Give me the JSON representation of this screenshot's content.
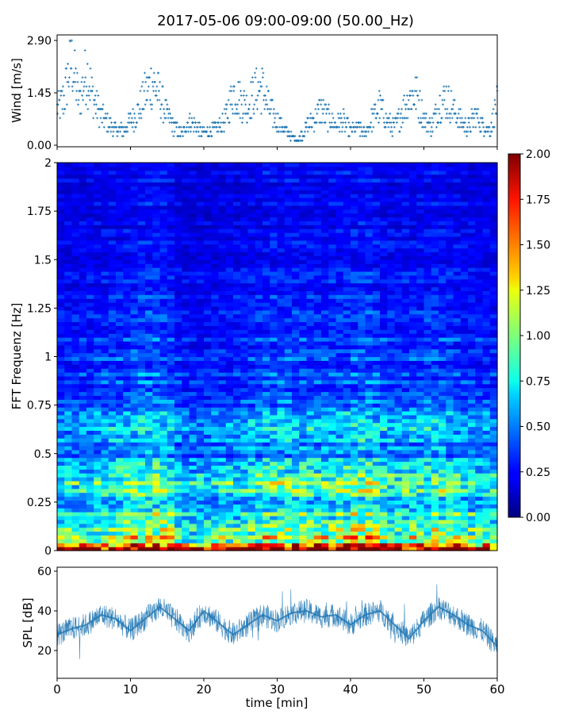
{
  "figure": {
    "title": "2017-05-06 09:00-09:00 (50.00_Hz)"
  },
  "chart_data": [
    {
      "type": "scatter",
      "panel": "wind",
      "ylabel": "Wind [m/s]",
      "xlim": [
        0,
        60
      ],
      "ylim": [
        0,
        2.9
      ],
      "yticks": [
        "0.00",
        "1.45",
        "2.90"
      ],
      "color": "#1f77b4",
      "marker": "+",
      "series": [
        {
          "x": [
            0,
            1,
            1.5,
            2,
            2.5,
            3,
            4,
            5,
            6,
            7,
            8,
            9,
            10,
            11,
            12,
            13,
            14,
            15,
            16,
            17,
            18,
            19,
            20,
            21,
            22,
            23,
            24,
            25,
            26,
            27,
            28,
            29,
            30,
            31,
            32,
            33,
            34,
            35,
            36,
            37,
            38,
            39,
            40,
            41,
            42,
            43,
            44,
            45,
            46,
            47,
            48,
            49,
            50,
            51,
            52,
            53,
            54,
            55,
            56,
            57,
            58,
            59,
            60
          ],
          "values": [
            1.2,
            1.6,
            2.3,
            2.9,
            2.1,
            1.4,
            2.5,
            1.5,
            1.0,
            0.7,
            0.5,
            0.5,
            0.8,
            1.1,
            1.7,
            2.1,
            1.6,
            1.0,
            0.6,
            0.4,
            0.8,
            0.6,
            0.4,
            0.5,
            0.6,
            0.9,
            1.8,
            1.5,
            1.3,
            1.8,
            1.9,
            1.2,
            0.8,
            0.5,
            0.3,
            0.2,
            0.6,
            0.9,
            1.2,
            0.9,
            0.7,
            0.8,
            0.5,
            0.6,
            0.4,
            0.9,
            1.3,
            0.8,
            0.6,
            1.1,
            1.6,
            1.7,
            0.9,
            0.6,
            1.3,
            1.6,
            1.2,
            0.8,
            0.6,
            1.0,
            0.7,
            0.5,
            1.4
          ]
        }
      ]
    },
    {
      "type": "heatmap",
      "panel": "spectrogram",
      "ylabel": "FFT Frequenz [Hz]",
      "xlim": [
        0,
        60
      ],
      "ylim": [
        0,
        2
      ],
      "yticks": [
        "0",
        "0.25",
        "0.5",
        "0.75",
        "1",
        "1.25",
        "1.5",
        "1.75",
        "2"
      ],
      "colormap": "jet",
      "colorbar": {
        "range": [
          0,
          2
        ],
        "ticks": [
          "0.00",
          "0.25",
          "0.50",
          "0.75",
          "1.00",
          "1.25",
          "1.50",
          "1.75",
          "2.00"
        ]
      },
      "band_profile": {
        "frequency_hz": [
          0.0,
          0.05,
          0.1,
          0.2,
          0.3,
          0.33,
          0.4,
          0.5,
          0.65,
          0.8,
          1.0,
          1.25,
          1.5,
          1.75,
          2.0
        ],
        "mean_level": [
          1.6,
          1.2,
          0.9,
          0.75,
          0.7,
          0.85,
          0.6,
          0.45,
          0.55,
          0.35,
          0.35,
          0.3,
          0.22,
          0.2,
          0.22
        ]
      },
      "time_intensity": {
        "time_min": [
          0,
          5,
          10,
          12,
          15,
          17,
          20,
          25,
          30,
          35,
          40,
          42,
          45,
          50,
          52,
          55,
          60
        ],
        "relative": [
          0.9,
          1.0,
          1.15,
          1.3,
          1.2,
          0.85,
          0.9,
          1.0,
          1.2,
          1.1,
          1.2,
          1.3,
          1.05,
          1.1,
          1.2,
          1.0,
          0.95
        ]
      }
    },
    {
      "type": "line",
      "panel": "spl",
      "xlabel": "time [min]",
      "ylabel": "SPL [dB]",
      "xlim": [
        0,
        60
      ],
      "ylim": [
        6,
        62
      ],
      "xticks": [
        "0",
        "10",
        "20",
        "30",
        "40",
        "50",
        "60"
      ],
      "yticks": [
        "20",
        "40",
        "60"
      ],
      "color": "#1f77b4",
      "series": [
        {
          "x": [
            0,
            2,
            4,
            6,
            8,
            10,
            12,
            14,
            16,
            18,
            20,
            22,
            24,
            26,
            28,
            30,
            32,
            34,
            36,
            38,
            40,
            42,
            44,
            46,
            48,
            50,
            52,
            54,
            56,
            58,
            60
          ],
          "values": [
            28,
            31,
            33,
            38,
            36,
            30,
            36,
            42,
            36,
            30,
            40,
            34,
            28,
            33,
            38,
            35,
            39,
            40,
            37,
            38,
            33,
            38,
            40,
            33,
            26,
            35,
            42,
            38,
            33,
            30,
            22
          ]
        }
      ]
    }
  ]
}
